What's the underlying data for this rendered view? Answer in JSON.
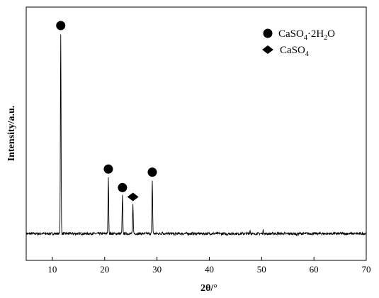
{
  "chart_data": {
    "type": "line",
    "title": "",
    "xlabel": "2θ/°",
    "ylabel": "Intensity/a.u.",
    "xlim": [
      5,
      70
    ],
    "x_ticks": [
      "10",
      "20",
      "30",
      "40",
      "50",
      "60",
      "70"
    ],
    "y_ticks": "none",
    "grid": false,
    "legend_placement": "top-right",
    "colors": {
      "line": "#000000",
      "marker": "#000000"
    },
    "legend": [
      {
        "symbol": "circle",
        "label_parts": [
          "CaSO",
          "4",
          "·2H",
          "2",
          "O"
        ]
      },
      {
        "symbol": "diamond",
        "label_parts": [
          "CaSO",
          "4"
        ]
      }
    ],
    "baseline": 0.03,
    "peaks": [
      {
        "x": 11.6,
        "y": 1.0,
        "phase": "CaSO4·2H2O",
        "marker": "circle"
      },
      {
        "x": 20.7,
        "y": 0.305,
        "phase": "CaSO4·2H2O",
        "marker": "circle"
      },
      {
        "x": 23.4,
        "y": 0.215,
        "phase": "CaSO4·2H2O",
        "marker": "circle"
      },
      {
        "x": 25.4,
        "y": 0.17,
        "phase": "CaSO4",
        "marker": "diamond"
      },
      {
        "x": 29.1,
        "y": 0.29,
        "phase": "CaSO4·2H2O",
        "marker": "circle"
      },
      {
        "x": 31.0,
        "y": 0.04
      },
      {
        "x": 33.4,
        "y": 0.025
      },
      {
        "x": 40.6,
        "y": 0.03
      },
      {
        "x": 43.4,
        "y": 0.025
      },
      {
        "x": 47.8,
        "y": 0.045
      },
      {
        "x": 48.5,
        "y": 0.025
      },
      {
        "x": 50.3,
        "y": 0.045
      },
      {
        "x": 56.7,
        "y": 0.02
      }
    ]
  }
}
